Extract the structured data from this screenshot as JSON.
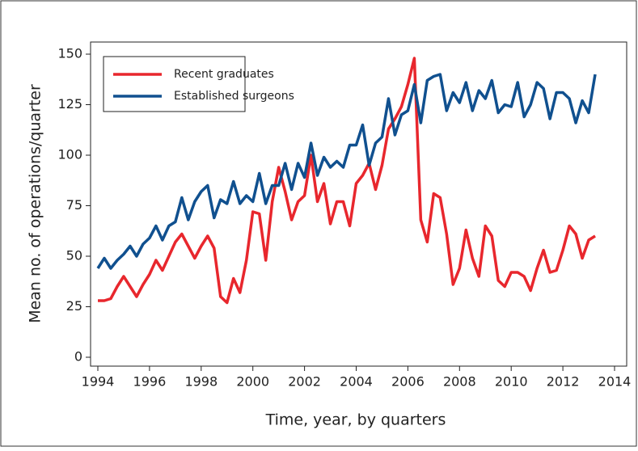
{
  "chart_data": {
    "type": "line",
    "x_label": "Time, year, by quarters",
    "y_label": "Mean no. of operations/quarter",
    "x": [
      1994,
      1994.25,
      1994.5,
      1994.75,
      1995,
      1995.25,
      1995.5,
      1995.75,
      1996,
      1996.25,
      1996.5,
      1996.75,
      1997,
      1997.25,
      1997.5,
      1997.75,
      1998,
      1998.25,
      1998.5,
      1998.75,
      1999,
      1999.25,
      1999.5,
      1999.75,
      2000,
      2000.25,
      2000.5,
      2000.75,
      2001,
      2001.25,
      2001.5,
      2001.75,
      2002,
      2002.25,
      2002.5,
      2002.75,
      2003,
      2003.25,
      2003.5,
      2003.75,
      2004,
      2004.25,
      2004.5,
      2004.75,
      2005,
      2005.25,
      2005.5,
      2005.75,
      2006,
      2006.25,
      2006.5,
      2006.75,
      2007,
      2007.25,
      2007.5,
      2007.75,
      2008,
      2008.25,
      2008.5,
      2008.75,
      2009,
      2009.25,
      2009.5,
      2009.75,
      2010,
      2010.25,
      2010.5,
      2010.75,
      2011,
      2011.25,
      2011.5,
      2011.75,
      2012,
      2012.25,
      2012.5,
      2012.75,
      2013,
      2013.25
    ],
    "series": [
      {
        "name": "Recent graduates",
        "color": "#e8272d",
        "values": [
          28,
          28,
          29,
          35,
          40,
          35,
          30,
          36,
          41,
          48,
          43,
          50,
          57,
          61,
          55,
          49,
          55,
          60,
          54,
          30,
          27,
          39,
          32,
          48,
          72,
          71,
          48,
          77,
          94,
          82,
          68,
          77,
          80,
          100,
          77,
          86,
          66,
          77,
          77,
          65,
          86,
          90,
          96,
          83,
          95,
          113,
          118,
          124,
          135,
          148,
          68,
          57,
          81,
          79,
          61,
          36,
          44,
          63,
          49,
          40,
          65,
          60,
          38,
          35,
          42,
          42,
          40,
          33,
          44,
          53,
          42,
          43,
          53,
          65,
          61,
          49,
          58,
          60
        ]
      },
      {
        "name": "Established surgeons",
        "color": "#10508f",
        "values": [
          44,
          49,
          44,
          48,
          51,
          55,
          50,
          56,
          59,
          65,
          58,
          65,
          67,
          79,
          68,
          77,
          82,
          85,
          69,
          78,
          76,
          87,
          76,
          80,
          77,
          91,
          76,
          85,
          85,
          96,
          83,
          96,
          89,
          106,
          90,
          99,
          94,
          97,
          94,
          105,
          105,
          115,
          95,
          106,
          109,
          128,
          110,
          120,
          122,
          135,
          116,
          137,
          139,
          140,
          122,
          131,
          126,
          136,
          122,
          132,
          128,
          137,
          121,
          125,
          124,
          136,
          119,
          125,
          136,
          133,
          118,
          131,
          131,
          128,
          116,
          127,
          121,
          140
        ]
      }
    ],
    "xlim": [
      1994,
      2014
    ],
    "xticks": [
      1994,
      1996,
      1998,
      2000,
      2002,
      2004,
      2006,
      2008,
      2010,
      2012,
      2014
    ],
    "ylim": [
      0,
      150
    ],
    "yticks": [
      0,
      25,
      50,
      75,
      100,
      125,
      150
    ],
    "legend": "top-left"
  }
}
